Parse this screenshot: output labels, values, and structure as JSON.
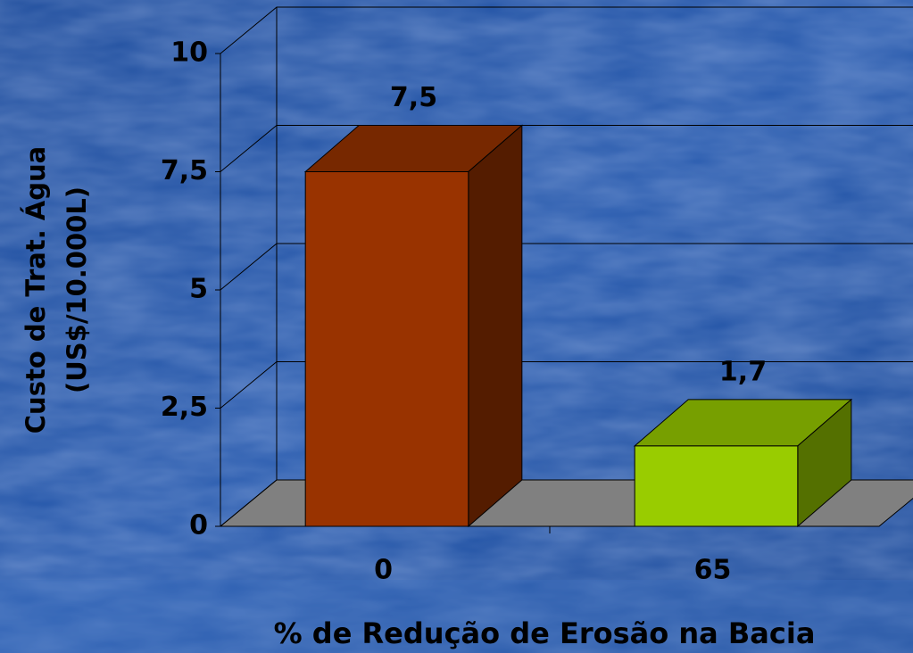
{
  "chart_data": {
    "type": "bar3d",
    "ylabel": [
      "Custo de Trat. Água",
      "(US$/10.000L)"
    ],
    "xlabel": "% de Redução de Erosão na Bacia",
    "categories": [
      "0",
      "65"
    ],
    "values": [
      7.5,
      1.7
    ],
    "value_labels": [
      "7,5",
      "1,7"
    ],
    "colors": [
      "#993300",
      "#99cc00"
    ],
    "ylim": [
      0,
      10
    ],
    "yticks": [
      0,
      {
        "value": 2.5,
        "label": "2,5"
      },
      5,
      {
        "value": 7.5,
        "label": "7,5"
      },
      10
    ],
    "grid": true
  }
}
